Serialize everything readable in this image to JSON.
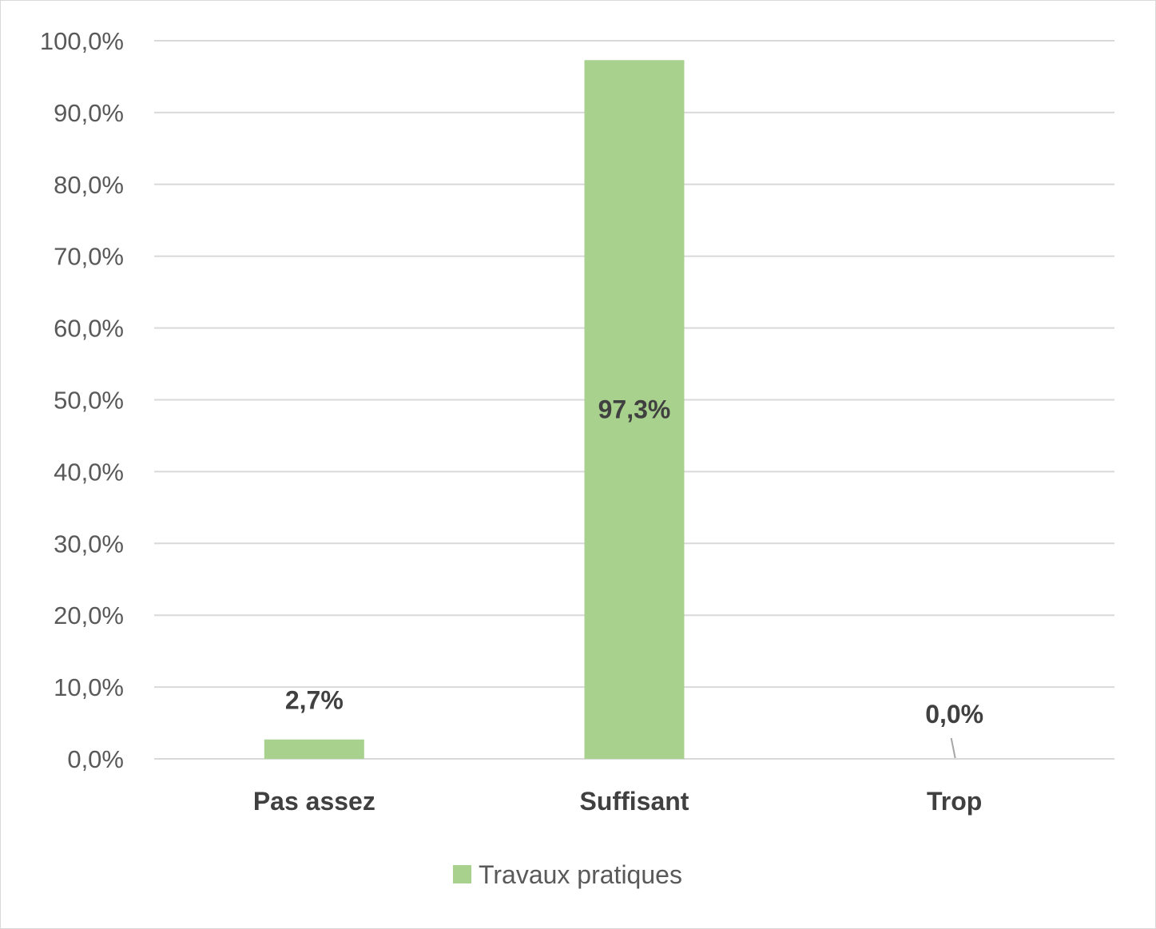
{
  "chart_data": {
    "type": "bar",
    "categories": [
      "Pas assez",
      "Suffisant",
      "Trop"
    ],
    "series": [
      {
        "name": "Travaux pratiques",
        "values": [
          2.7,
          97.3,
          0.0
        ],
        "data_labels": [
          "2,7%",
          "97,3%",
          "0,0%"
        ],
        "color": "#a9d18e"
      }
    ],
    "y_ticks": [
      "0,0%",
      "10,0%",
      "20,0%",
      "30,0%",
      "40,0%",
      "50,0%",
      "60,0%",
      "70,0%",
      "80,0%",
      "90,0%",
      "100,0%"
    ],
    "ylim": [
      0,
      100
    ],
    "title": "",
    "xlabel": "",
    "ylabel": "",
    "grid": true,
    "legend_position": "bottom",
    "gridline_color": "#d9d9d9"
  }
}
